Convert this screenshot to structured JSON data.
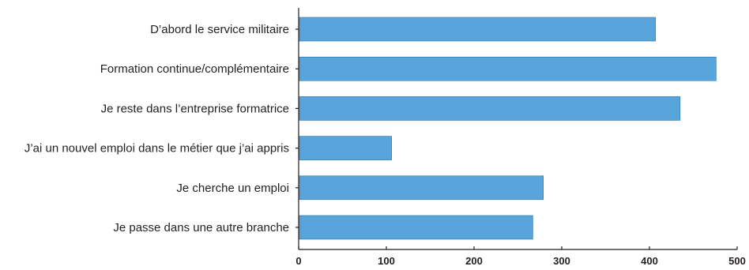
{
  "chart_data": {
    "type": "bar",
    "orientation": "horizontal",
    "title": "",
    "xlabel": "",
    "ylabel": "",
    "categories": [
      "D’abord le service militaire",
      "Formation continue/complémentaire",
      "Je reste dans l’entreprise formatrice",
      "J’ai un nouvel emploi dans le métier que j’ai appris",
      "Je cherche un emploi",
      "Je passe dans une autre branche"
    ],
    "values": [
      407,
      476,
      435,
      106,
      279,
      267
    ],
    "xlim": [
      0,
      500
    ],
    "xticks": [
      0,
      100,
      200,
      300,
      400,
      500
    ],
    "xtick_labels": [
      "0",
      "100",
      "200",
      "300",
      "400",
      "500"
    ],
    "grid": false,
    "legend": "none",
    "bar_color": "#58a5dc",
    "bar_edge_color": "#2f6e9e"
  }
}
